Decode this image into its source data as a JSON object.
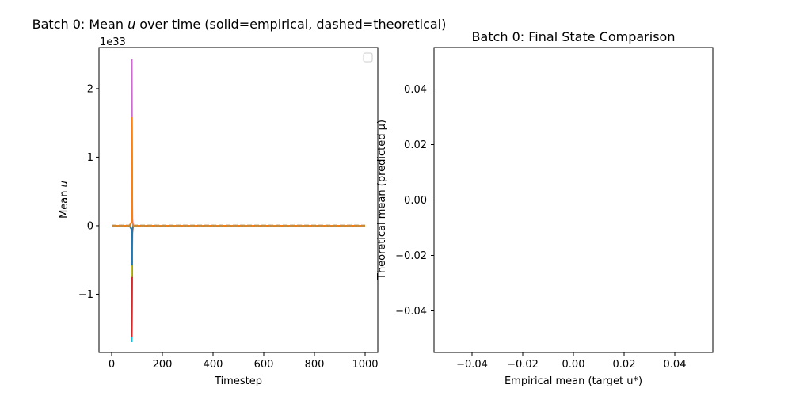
{
  "chart_data": [
    {
      "type": "line",
      "title": "Batch 0: Mean u over time (solid=empirical, dashed=theoretical)",
      "title_parts": {
        "before": "Batch 0: Mean ",
        "var": "u",
        "after": " over time (solid=empirical, dashed=theoretical)"
      },
      "xlabel": "Timestep",
      "ylabel_parts": {
        "before": "Mean ",
        "var": "u"
      },
      "y_offset_label": "1e33",
      "xlim": [
        -50,
        1050
      ],
      "ylim": [
        -1.85,
        2.6
      ],
      "x_ticks": [
        0,
        200,
        400,
        600,
        800,
        1000
      ],
      "y_ticks": [
        -1,
        0,
        1,
        2
      ],
      "y_tick_labels": [
        "−1",
        "0",
        "1",
        "2"
      ],
      "legend": "top-right",
      "solid_series": [
        {
          "color": "#cc6ccf",
          "x": [
            0,
            70,
            78,
            80,
            82,
            85,
            1000
          ],
          "y": [
            0,
            0,
            0.05,
            2.43,
            0.1,
            0,
            0
          ]
        },
        {
          "color": "#17becf",
          "x": [
            0,
            70,
            78,
            80,
            82,
            85,
            1000
          ],
          "y": [
            0,
            0,
            -0.05,
            -1.7,
            -0.1,
            0,
            0
          ]
        },
        {
          "color": "#d62728",
          "x": [
            0,
            70,
            78,
            80,
            82,
            85,
            1000
          ],
          "y": [
            0,
            0,
            -0.05,
            -1.62,
            -0.1,
            0,
            0
          ]
        },
        {
          "color": "#bcbd22",
          "x": [
            0,
            70,
            78,
            80,
            82,
            85,
            1000
          ],
          "y": [
            0,
            0,
            -0.05,
            -0.75,
            -0.05,
            0,
            0
          ]
        },
        {
          "color": "#1f77b4",
          "x": [
            0,
            70,
            78,
            80,
            82,
            85,
            1000
          ],
          "y": [
            0,
            0,
            -0.05,
            -0.58,
            -0.05,
            0,
            0
          ]
        },
        {
          "color": "#ff7f0e",
          "x": [
            0,
            70,
            78,
            80,
            82,
            85,
            1000
          ],
          "y": [
            0,
            0,
            0.05,
            1.58,
            0.05,
            0,
            0
          ]
        }
      ],
      "dashed_series": [
        {
          "color": "#8c8c8c",
          "x": [
            0,
            1000
          ],
          "y": [
            0,
            0
          ]
        },
        {
          "color": "#c98a3a",
          "x": [
            0,
            1000
          ],
          "y": [
            0,
            0
          ]
        }
      ]
    },
    {
      "type": "scatter",
      "title": "Batch 0: Final State Comparison",
      "xlabel": "Empirical mean (target u*)",
      "ylabel": "Theoretical mean (predicted μ)",
      "xlim": [
        -0.055,
        0.055
      ],
      "ylim": [
        -0.055,
        0.055
      ],
      "x_ticks": [
        -0.04,
        -0.02,
        0.0,
        0.02,
        0.04
      ],
      "x_tick_labels": [
        "−0.04",
        "−0.02",
        "0.00",
        "0.02",
        "0.04"
      ],
      "y_ticks": [
        -0.04,
        -0.02,
        0.0,
        0.02,
        0.04
      ],
      "y_tick_labels": [
        "−0.04",
        "−0.02",
        "0.00",
        "0.02",
        "0.04"
      ],
      "points": []
    }
  ]
}
